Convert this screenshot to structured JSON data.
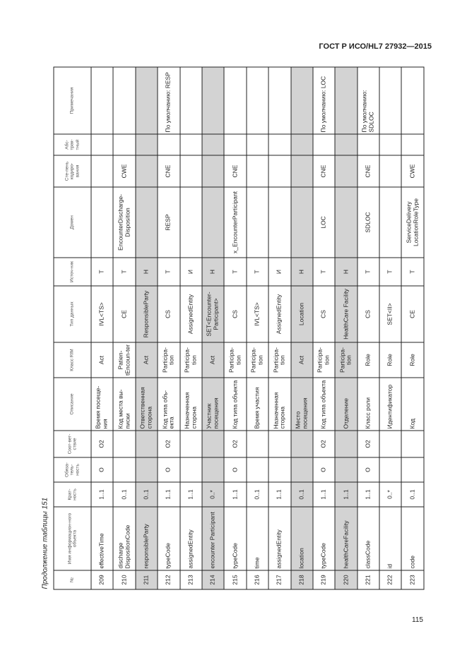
{
  "header": "ГОСТ Р ИСО/HL7 27932—2015",
  "caption": "Продолжение таблицы 151",
  "page_number": "115",
  "columns": [
    "№",
    "Имя информацион-ного объекта",
    "Крат-ность",
    "Обяза-тель-ность",
    "Соот-вет-ствие",
    "Описание",
    "Класс RIM",
    "Тип данных",
    "Источ-ник",
    "Домен",
    "Сте-пень кодиро-вания",
    "Абс-трак-тный",
    "Примечания"
  ],
  "rows": [
    {
      "shaded": false,
      "cells": [
        "209",
        "effectiveTime",
        "1..1",
        "O",
        "O2",
        "Время посеще-ния",
        "Act",
        "IVL<TS>",
        "T",
        "",
        "",
        "",
        ""
      ]
    },
    {
      "shaded": false,
      "cells": [
        "210",
        "discharge DispositionCode",
        "0..1",
        "",
        "",
        "Код места вы-писки",
        "Patien-tEncoun-ter",
        "CE",
        "T",
        "EncounterDischarge-Disposition",
        "CWE",
        "",
        ""
      ]
    },
    {
      "shaded": true,
      "cells": [
        "211",
        "responsibleParty",
        "0..1",
        "",
        "",
        "Ответственная сторона",
        "Act",
        "ResponsibleParty",
        "H",
        "",
        "",
        "",
        ""
      ]
    },
    {
      "shaded": false,
      "cells": [
        "212",
        "typeCode",
        "1..1",
        "O",
        "O2",
        "Код типа объ-екта",
        "Participa-tion",
        "CS",
        "T",
        "RESP",
        "CNE",
        "",
        "По умолчанию: RESP"
      ]
    },
    {
      "shaded": false,
      "cells": [
        "213",
        "assignedEntity",
        "1..1",
        "",
        "",
        "Назначенная сторона",
        "Participa-tion",
        "AssignedEntity",
        "И",
        "",
        "",
        "",
        ""
      ]
    },
    {
      "shaded": true,
      "cells": [
        "214",
        "encounter Participant",
        "0..*",
        "",
        "",
        "Участник посещения",
        "Act",
        "SET<Encounter-Participant>",
        "H",
        "",
        "",
        "",
        ""
      ]
    },
    {
      "shaded": false,
      "cells": [
        "215",
        "typeCode",
        "1..1",
        "O",
        "O2",
        "Код типа объекта",
        "Participa-tion",
        "CS",
        "T",
        "x_EncounterParticipant",
        "CNE",
        "",
        ""
      ]
    },
    {
      "shaded": false,
      "cells": [
        "216",
        "time",
        "0..1",
        "",
        "",
        "Время участия",
        "Participa-tion",
        "IVL<TS>",
        "T",
        "",
        "",
        "",
        ""
      ]
    },
    {
      "shaded": false,
      "cells": [
        "217",
        "assignedEntity",
        "1..1",
        "",
        "",
        "Назначенная сторона",
        "Participa-tion",
        "AssignedEntity",
        "И",
        "",
        "",
        "",
        ""
      ]
    },
    {
      "shaded": true,
      "cells": [
        "218",
        "location",
        "0..1",
        "",
        "",
        "Место посещения",
        "Act",
        "Location",
        "H",
        "",
        "",
        "",
        ""
      ]
    },
    {
      "shaded": false,
      "cells": [
        "219",
        "typeCode",
        "1..1",
        "O",
        "O2",
        "Код типа объекта",
        "Participa-tion",
        "CS",
        "T",
        "LOC",
        "CNE",
        "",
        "По умолчанию: LOC"
      ]
    },
    {
      "shaded": true,
      "cells": [
        "220",
        "healthCareFacility",
        "1..1",
        "",
        "",
        "Отделение",
        "Participa-tion",
        "HealthCare Facility",
        "H",
        "",
        "",
        "",
        ""
      ]
    },
    {
      "shaded": false,
      "cells": [
        "221",
        "classCode",
        "1..1",
        "O",
        "O2",
        "Класс роли",
        "Role",
        "CS",
        "T",
        "SDLOC",
        "CNE",
        "",
        "По умолчанию: SDLOC"
      ]
    },
    {
      "shaded": false,
      "cells": [
        "222",
        "id",
        "0..*",
        "",
        "",
        "Идентификатор",
        "Role",
        "SET<II>",
        "T",
        "",
        "",
        "",
        ""
      ]
    },
    {
      "shaded": false,
      "cells": [
        "223",
        "code",
        "0..1",
        "",
        "",
        "Код",
        "Role",
        "CE",
        "T",
        "ServiceDelivery LocationRoleType",
        "CWE",
        "",
        ""
      ]
    }
  ]
}
